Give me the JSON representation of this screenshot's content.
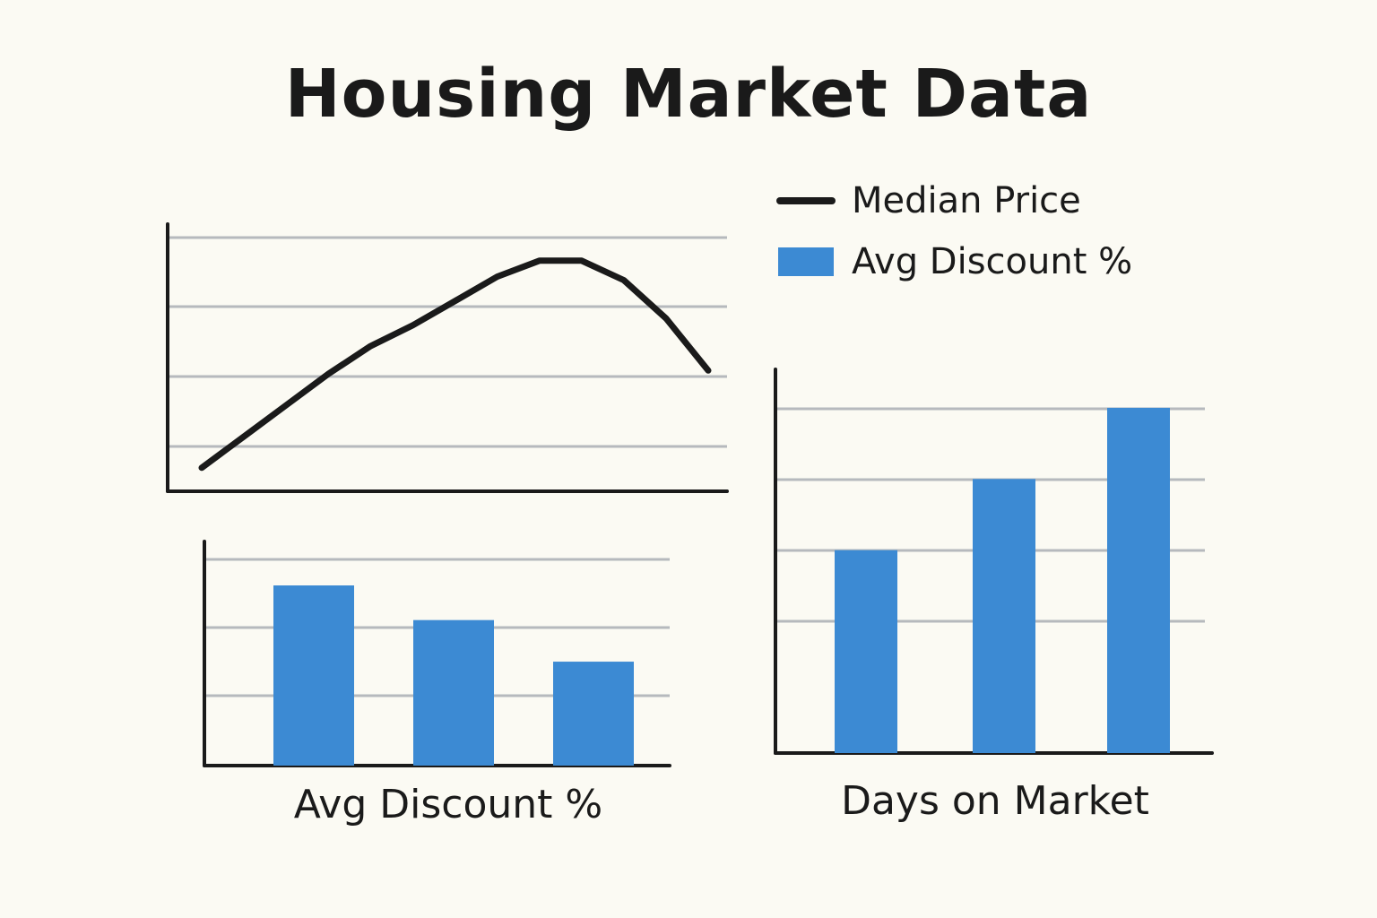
{
  "title": "Housing Market Data",
  "colors": {
    "line": "#1a1a1a",
    "bar": "#3c8ad3",
    "grid": "#b6b9bd",
    "axis": "#1a1a1a"
  },
  "legend": {
    "line_label": "Median Price",
    "bar_label": "Avg Discount %"
  },
  "chart_data": [
    {
      "type": "line",
      "title": "",
      "series": [
        {
          "name": "Median Price",
          "x": [
            1,
            2,
            3,
            4,
            5,
            6,
            7,
            8,
            9,
            10,
            11,
            12,
            13
          ],
          "values": [
            0.7,
            1.15,
            1.6,
            2.05,
            2.45,
            2.75,
            3.1,
            3.45,
            3.68,
            3.68,
            3.4,
            2.85,
            2.1
          ]
        }
      ],
      "ylim": [
        0,
        4
      ],
      "grid": true,
      "legend_position": "top-right"
    },
    {
      "type": "bar",
      "title": "Avg Discount %",
      "categories": [
        "",
        "",
        ""
      ],
      "values": [
        2.6,
        2.1,
        1.5
      ],
      "ylim": [
        0,
        3
      ],
      "grid": true
    },
    {
      "type": "bar",
      "title": "Days on Market",
      "categories": [
        "",
        "",
        ""
      ],
      "values": [
        2.85,
        3.85,
        4.85
      ],
      "ylim": [
        0,
        5
      ],
      "grid": true
    }
  ]
}
